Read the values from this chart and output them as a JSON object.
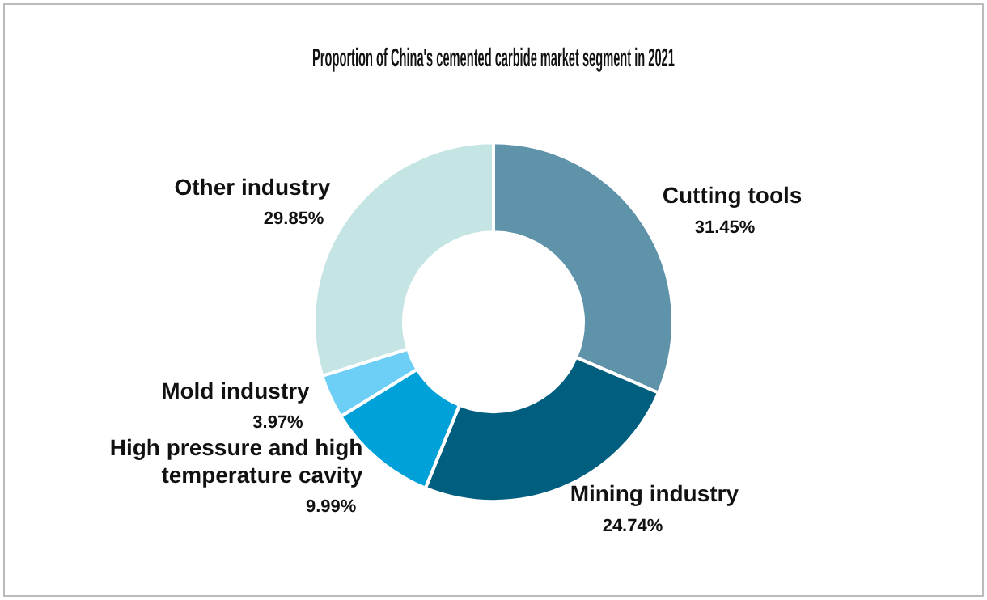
{
  "chart_data": {
    "type": "donut",
    "title": "Proportion of China's cemented carbide market segment in 2021",
    "categories": [
      "Cutting tools",
      "Mining industry",
      "High pressure and high temperature cavity",
      "Mold industry",
      "Other industry"
    ],
    "values": [
      31.45,
      24.74,
      9.99,
      3.97,
      29.85
    ],
    "colors": [
      "#5f93aa",
      "#005f7f",
      "#00a0d8",
      "#6dcff6",
      "#c5e5e5"
    ],
    "value_labels": [
      "31.45%",
      "24.74%",
      "9.99%",
      "3.97%",
      "29.85%"
    ],
    "legend": false
  }
}
